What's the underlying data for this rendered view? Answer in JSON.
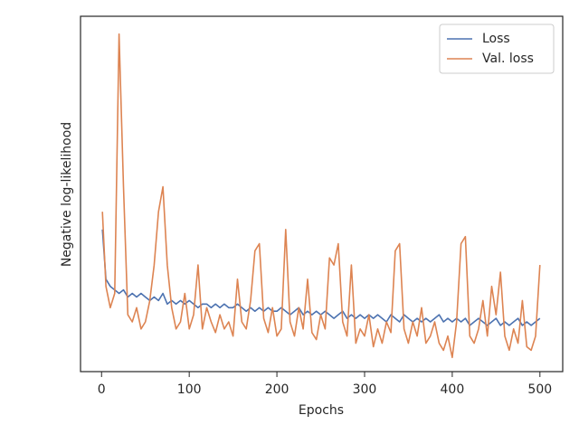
{
  "chart_data": {
    "type": "line",
    "xlabel": "Epochs",
    "ylabel": "Negative log-likelihood",
    "x": [
      1,
      5,
      10,
      15,
      20,
      25,
      30,
      35,
      40,
      45,
      50,
      55,
      60,
      65,
      70,
      75,
      80,
      85,
      90,
      95,
      100,
      105,
      110,
      115,
      120,
      125,
      130,
      135,
      140,
      145,
      150,
      155,
      160,
      165,
      170,
      175,
      180,
      185,
      190,
      195,
      200,
      205,
      210,
      215,
      220,
      225,
      230,
      235,
      240,
      245,
      250,
      255,
      260,
      265,
      270,
      275,
      280,
      285,
      290,
      295,
      300,
      305,
      310,
      315,
      320,
      325,
      330,
      335,
      340,
      345,
      350,
      355,
      360,
      365,
      370,
      375,
      380,
      385,
      390,
      395,
      400,
      405,
      410,
      415,
      420,
      425,
      430,
      435,
      440,
      445,
      450,
      455,
      460,
      465,
      470,
      475,
      480,
      485,
      490,
      495,
      500
    ],
    "series": [
      {
        "name": "Loss",
        "color": "#4c72b0",
        "values": [
          40,
          26,
          24,
          23,
          22,
          23,
          21,
          22,
          21,
          22,
          21,
          20,
          21,
          20,
          22,
          19,
          20,
          19,
          20,
          19,
          20,
          19,
          18,
          19,
          19,
          18,
          19,
          18,
          19,
          18,
          18,
          19,
          18,
          17,
          18,
          17,
          18,
          17,
          18,
          17,
          17,
          18,
          17,
          16,
          17,
          18,
          16,
          17,
          16,
          17,
          16,
          17,
          16,
          15,
          16,
          17,
          15,
          16,
          15,
          16,
          15,
          16,
          15,
          16,
          15,
          14,
          16,
          15,
          14,
          16,
          15,
          14,
          15,
          14,
          15,
          14,
          15,
          16,
          14,
          15,
          14,
          15,
          14,
          15,
          13,
          14,
          15,
          14,
          13,
          14,
          15,
          13,
          14,
          13,
          14,
          15,
          13,
          14,
          13,
          14,
          15
        ]
      },
      {
        "name": "Val. loss",
        "color": "#dd8452",
        "values": [
          45,
          24,
          18,
          22,
          95,
          52,
          16,
          14,
          18,
          12,
          14,
          20,
          30,
          45,
          52,
          30,
          18,
          12,
          14,
          22,
          12,
          16,
          30,
          12,
          18,
          14,
          11,
          16,
          12,
          14,
          10,
          26,
          14,
          12,
          20,
          34,
          36,
          15,
          11,
          18,
          10,
          12,
          40,
          14,
          10,
          18,
          12,
          26,
          11,
          9,
          16,
          12,
          32,
          30,
          36,
          14,
          10,
          30,
          8,
          12,
          10,
          16,
          7,
          12,
          8,
          14,
          11,
          34,
          36,
          12,
          8,
          14,
          10,
          18,
          8,
          10,
          14,
          8,
          6,
          10,
          4,
          14,
          36,
          38,
          10,
          8,
          12,
          20,
          10,
          24,
          16,
          28,
          10,
          6,
          12,
          8,
          20,
          7,
          6,
          10,
          30
        ]
      }
    ],
    "xlim": [
      -24,
      526
    ],
    "ylim": [
      0,
      100
    ],
    "xticks": [
      0,
      100,
      200,
      300,
      400,
      500
    ],
    "legend": "upper right"
  }
}
